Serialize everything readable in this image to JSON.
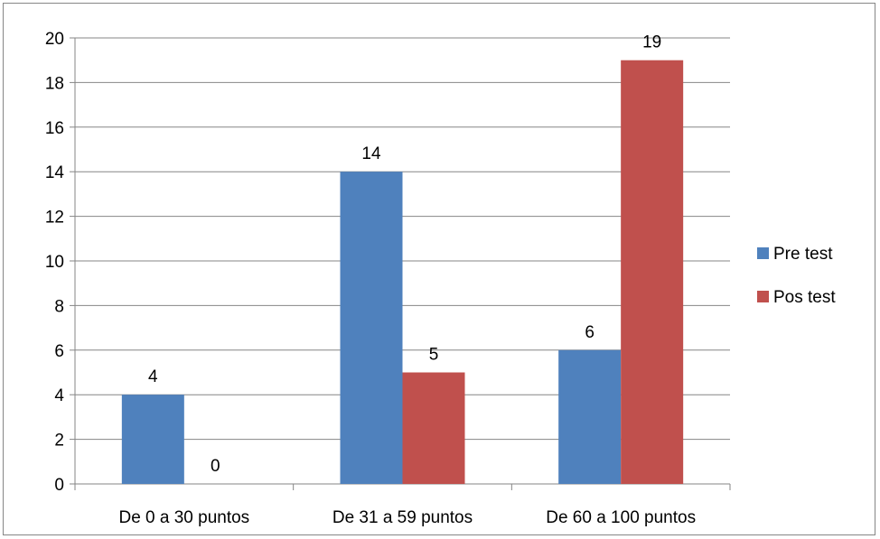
{
  "chart_data": {
    "type": "bar",
    "title": "",
    "xlabel": "",
    "ylabel": "",
    "categories": [
      "De 0 a 30 puntos",
      "De 31 a 59 puntos",
      "De 60 a 100 puntos"
    ],
    "series": [
      {
        "name": "Pre test",
        "values": [
          4,
          14,
          6
        ],
        "color": "#4F81BD"
      },
      {
        "name": "Pos test",
        "values": [
          0,
          5,
          19
        ],
        "color": "#C0504D"
      }
    ],
    "ylim": [
      0,
      20
    ],
    "yticks": [
      0,
      2,
      4,
      6,
      8,
      10,
      12,
      14,
      16,
      18,
      20
    ],
    "grid": true,
    "legend": "right",
    "data_labels": true
  }
}
